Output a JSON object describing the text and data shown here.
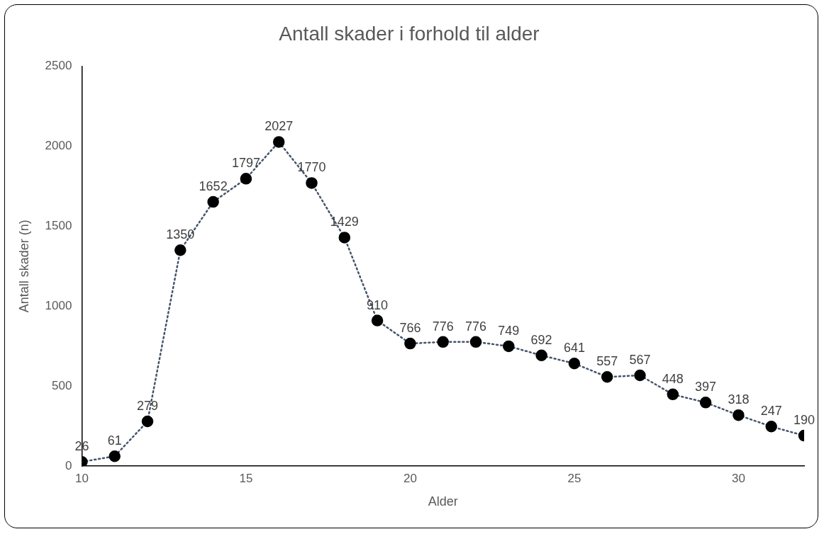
{
  "chart_data": {
    "type": "line",
    "title": "Antall skader i forhold til alder",
    "xlabel": "Alder",
    "ylabel": "Antall skader (n)",
    "x": [
      10,
      11,
      12,
      13,
      14,
      15,
      16,
      17,
      18,
      19,
      20,
      21,
      22,
      23,
      24,
      25,
      26,
      27,
      28,
      29,
      30,
      31,
      32
    ],
    "series": [
      {
        "color": "#000000",
        "values": [
          26,
          61,
          279,
          1350,
          1652,
          1797,
          2027,
          1770,
          1429,
          910,
          766,
          776,
          776,
          749,
          692,
          641,
          557,
          567,
          448,
          397,
          318,
          247,
          190
        ]
      }
    ],
    "xlim": [
      10,
      32
    ],
    "xticks": [
      10,
      15,
      20,
      25,
      30
    ],
    "ylim": [
      0,
      2500
    ],
    "yticks": [
      0,
      500,
      1000,
      1500,
      2000,
      2500
    ],
    "grid": false,
    "legend": false,
    "marker": "circle",
    "line_style": "dotted",
    "data_labels": true
  }
}
